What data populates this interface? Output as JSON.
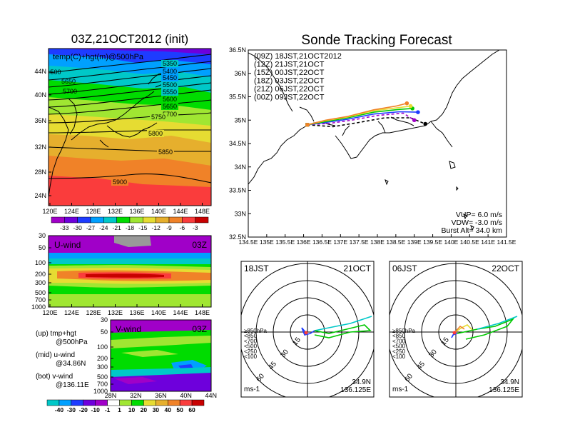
{
  "panels": {
    "top_left": {
      "title": "03Z,21OCT2012 (init)",
      "overlay_label": "temp(C)+hgt(m)@500hPa",
      "lat_ticks": [
        "44N",
        "40N",
        "36N",
        "32N",
        "28N",
        "24N"
      ],
      "lon_ticks": [
        "120E",
        "124E",
        "128E",
        "132E",
        "136E",
        "140E",
        "144E",
        "148E"
      ],
      "contour_labels": [
        "5350",
        "5400",
        "5450",
        "5500",
        "5550",
        "5600",
        "5650",
        "5700",
        "5750",
        "5800",
        "5850",
        "5900",
        "5650",
        "5700",
        "5600",
        "5500"
      ],
      "colorbar_ticks": [
        "-33",
        "-30",
        "-27",
        "-24",
        "-21",
        "-18",
        "-15",
        "-12",
        "-9",
        "-6",
        "-3"
      ],
      "colorbar_colors": [
        "#a000c8",
        "#6e00dc",
        "#1e3cff",
        "#00a0ff",
        "#00c8c8",
        "#00dc00",
        "#a0e632",
        "#e6dc32",
        "#e6af2d",
        "#f08228",
        "#fa3c3c",
        "#c80000"
      ]
    },
    "mid_left": {
      "label": "U-wind",
      "time": "03Z",
      "pressure_ticks": [
        "30",
        "50",
        "100",
        "200",
        "300",
        "500",
        "700",
        "1000"
      ],
      "lon_ticks": [
        "120E",
        "124E",
        "128E",
        "132E",
        "136E",
        "140E",
        "144E",
        "148E"
      ]
    },
    "bottom_left": {
      "label": "V-wind",
      "time": "03Z",
      "pressure_ticks": [
        "30",
        "50",
        "100",
        "200",
        "300",
        "500",
        "700",
        "1000"
      ],
      "lat_ticks": [
        "28N",
        "32N",
        "36N",
        "40N",
        "44N"
      ],
      "legend_lines": [
        {
          "a": "(up)  tmp+hgt",
          "b": "@500hPa"
        },
        {
          "a": "(mid)  u-wind",
          "b": "@34.86N"
        },
        {
          "a": "(bot)  v-wind",
          "b": "@136.11E"
        }
      ],
      "colorbar_ticks": [
        "-40",
        "-30",
        "-20",
        "-10",
        "-1",
        "1",
        "10",
        "20",
        "30",
        "40",
        "50",
        "60"
      ],
      "colorbar_colors": [
        "#00c8c8",
        "#00a0ff",
        "#1e3cff",
        "#6e00dc",
        "#a000c8",
        "#ffffff",
        "#a0e632",
        "#00dc00",
        "#e6dc32",
        "#e6af2d",
        "#f08228",
        "#fa3c3c",
        "#c80000"
      ]
    },
    "track": {
      "title": "Sonde Tracking Forecast",
      "legend": [
        {
          "label": "(09Z)  18JST,21OCT2012",
          "color": "#000000"
        },
        {
          "label": "(12Z)  21JST,21OCT",
          "color": "#a000c8"
        },
        {
          "label": "(15Z)  00JST,22OCT",
          "color": "#1e3cff"
        },
        {
          "label": "(18Z)  03JST,22OCT",
          "color": "#00c800"
        },
        {
          "label": "(21Z)  06JST,22OCT",
          "color": "#e6dc32"
        },
        {
          "label": "(00Z)  09JST,22OCT",
          "color": "#f08228"
        }
      ],
      "lat_ticks": [
        "36.5N",
        "36N",
        "35.5N",
        "35N",
        "34.5N",
        "34N",
        "33.5N",
        "33N",
        "32.5N"
      ],
      "lon_ticks": [
        "134.5E",
        "135E",
        "135.5E",
        "136E",
        "136.5E",
        "137E",
        "137.5E",
        "138E",
        "138.5E",
        "139E",
        "139.5E",
        "140E",
        "140.5E",
        "141E",
        "141.5E"
      ],
      "params": [
        "VUP=  6.0  m/s",
        "VDW= -3.0  m/s",
        "Burst Alt= 34.0  km"
      ]
    },
    "polar_left": {
      "time": "18JST",
      "date": "21OCT",
      "ring_labels": [
        "15",
        "30",
        "45",
        "60"
      ],
      "level_legend": [
        "≥850hPa",
        "<850",
        "<700",
        "<500",
        "<250",
        "<100"
      ],
      "level_colors": [
        "#fa3c3c",
        "#f08228",
        "#e6dc32",
        "#00c800",
        "#00c8c8",
        "#1e3cff"
      ],
      "unit": "ms-1",
      "lat": "34.9N",
      "lon": "136.125E"
    },
    "polar_right": {
      "time": "06JST",
      "date": "22OCT",
      "ring_labels": [
        "15",
        "30",
        "45",
        "60"
      ],
      "level_legend": [
        "≥850hPa",
        "<850",
        "<700",
        "<500",
        "<250",
        "<100"
      ],
      "level_colors": [
        "#fa3c3c",
        "#f08228",
        "#e6dc32",
        "#00c800",
        "#00c8c8",
        "#1e3cff"
      ],
      "unit": "ms-1",
      "lat": "34.9N",
      "lon": "136.125E"
    }
  },
  "chart_data": [
    {
      "type": "heatmap",
      "title": "03Z,21OCT2012 (init)",
      "variable": "temp(C)+hgt(m)@500hPa",
      "lon_range": [
        "120E",
        "150E"
      ],
      "lat_range": [
        "22N",
        "47N"
      ],
      "height_contours_m": [
        5350,
        5400,
        5450,
        5500,
        5550,
        5600,
        5650,
        5700,
        5750,
        5800,
        5850,
        5900
      ]
    },
    {
      "type": "heatmap",
      "title": "U-wind 03Z",
      "x_range": [
        "120E",
        "150E"
      ],
      "y_range_hpa": [
        1000,
        30
      ],
      "note_band": "max near 200hPa"
    },
    {
      "type": "heatmap",
      "title": "V-wind 03Z",
      "x_range": [
        "28N",
        "44N"
      ],
      "y_range_hpa": [
        1000,
        30
      ]
    },
    {
      "type": "line",
      "title": "Sonde Tracking Forecast",
      "xlim": [
        134.5,
        141.5
      ],
      "ylim": [
        32.5,
        36.5
      ],
      "series": [
        {
          "name": "(09Z)  18JST,21OCT2012",
          "x": [
            136.1,
            136.8,
            137.5,
            138.2,
            138.9,
            139.3
          ],
          "y": [
            34.9,
            34.86,
            34.95,
            35.05,
            35.05,
            34.92
          ]
        },
        {
          "name": "(12Z)  21JST,21OCT",
          "x": [
            136.1,
            136.7,
            137.3,
            138.0,
            138.7,
            139.0
          ],
          "y": [
            34.9,
            34.93,
            35.0,
            35.1,
            35.15,
            35.0
          ]
        },
        {
          "name": "(15Z)  00JST,22OCT",
          "x": [
            136.1,
            136.6,
            137.2,
            137.9,
            138.6,
            139.1
          ],
          "y": [
            34.9,
            34.95,
            35.02,
            35.13,
            35.18,
            35.17
          ]
        },
        {
          "name": "(18Z)  03JST,22OCT",
          "x": [
            136.1,
            136.6,
            137.2,
            137.9,
            138.6,
            138.95
          ],
          "y": [
            34.9,
            34.97,
            35.05,
            35.17,
            35.23,
            35.25
          ]
        },
        {
          "name": "(21Z)  06JST,22OCT",
          "x": [
            136.1,
            136.6,
            137.2,
            137.9,
            138.6,
            138.9
          ],
          "y": [
            34.9,
            34.99,
            35.07,
            35.2,
            35.27,
            35.3
          ]
        },
        {
          "name": "(00Z)  09JST,22OCT",
          "x": [
            136.1,
            136.6,
            137.2,
            137.9,
            138.5,
            138.8
          ],
          "y": [
            34.9,
            35.0,
            35.08,
            35.22,
            35.3,
            35.36
          ]
        }
      ]
    }
  ]
}
